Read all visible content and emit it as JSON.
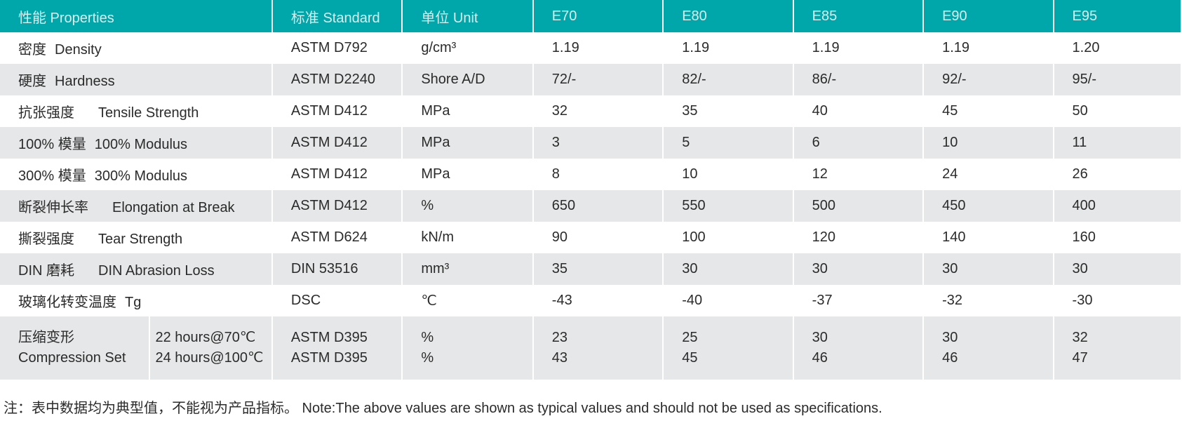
{
  "table": {
    "header": [
      "性能 Properties",
      "标准 Standard",
      "单位 Unit",
      "E70",
      "E80",
      "E85",
      "E90",
      "E95"
    ],
    "rows": [
      [
        "密度",
        "Density",
        "ASTM D792",
        "g/cm³",
        "1.19",
        "1.19",
        "1.19",
        "1.19",
        "1.20"
      ],
      [
        "硬度",
        "Hardness",
        "ASTM D2240",
        "Shore A/D",
        "72/-",
        "82/-",
        "86/-",
        "92/-",
        "95/-"
      ],
      [
        "抗张强度",
        "Tensile Strength",
        "ASTM D412",
        "MPa",
        "32",
        "35",
        "40",
        "45",
        "50"
      ],
      [
        "100% 模量",
        "100% Modulus",
        "ASTM D412",
        "MPa",
        "3",
        "5",
        "6",
        "10",
        "11"
      ],
      [
        "300% 模量",
        "300% Modulus",
        "ASTM D412",
        "MPa",
        "8",
        "10",
        "12",
        "24",
        "26"
      ],
      [
        "断裂伸长率",
        "Elongation at Break",
        "ASTM D412",
        "%",
        "650",
        "550",
        "500",
        "450",
        "400"
      ],
      [
        "撕裂强度",
        "Tear Strength",
        "ASTM D624",
        "kN/m",
        "90",
        "100",
        "120",
        "140",
        "160"
      ],
      [
        "DIN 磨耗",
        "DIN Abrasion Loss",
        "DIN 53516",
        "mm³",
        "35",
        "30",
        "30",
        "30",
        "30"
      ],
      [
        "玻璃化转变温度",
        "Tg",
        "DSC",
        "℃",
        "-43",
        "-40",
        "-37",
        "-32",
        "-30"
      ]
    ],
    "compression": {
      "label_cn": "压缩变形",
      "label_en": "Compression Set",
      "conditions": [
        [
          "22 hours@70℃",
          "ASTM D395",
          "%",
          "23",
          "25",
          "30",
          "30",
          "32"
        ],
        [
          "24 hours@100℃",
          "ASTM D395",
          "%",
          "43",
          "45",
          "46",
          "46",
          "47"
        ]
      ]
    }
  },
  "note": "注：表中数据均为典型值，不能视为产品指标。 Note:The above values are shown as typical values and should not be used as specifications."
}
